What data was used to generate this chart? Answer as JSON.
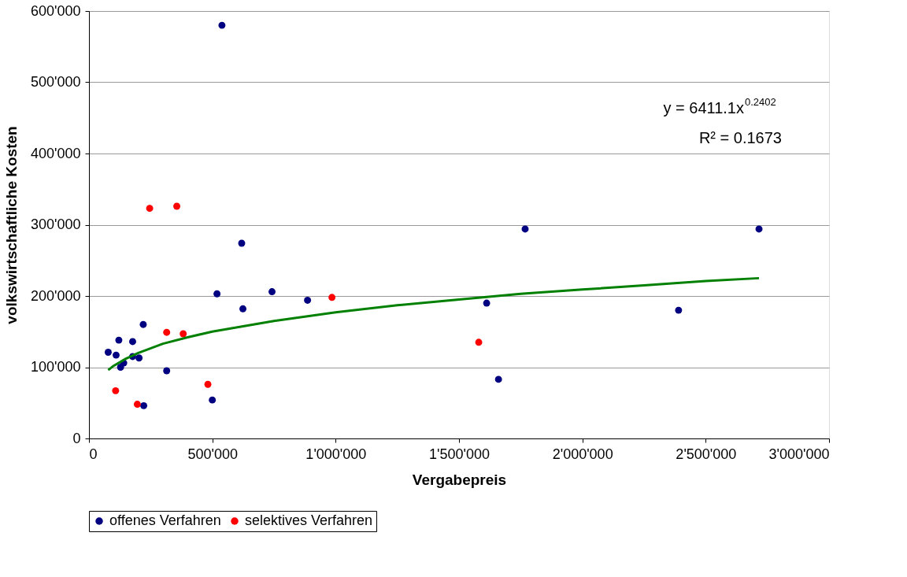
{
  "chart_data": {
    "type": "scatter",
    "xlabel": "Vergabepreis",
    "ylabel": "volkswirtschaftliche Kosten",
    "xlim": [
      0,
      3000000
    ],
    "ylim": [
      0,
      600000
    ],
    "xticks": [
      0,
      {
        "value": 500000,
        "label": "500'000"
      },
      {
        "value": 1000000,
        "label": "1'000'000"
      },
      {
        "value": 1500000,
        "label": "1'500'000"
      },
      {
        "value": 2000000,
        "label": "2'000'000"
      },
      {
        "value": 2500000,
        "label": "2'500'000"
      },
      {
        "value": 3000000,
        "label": "3'000'000"
      }
    ],
    "yticks": [
      0,
      {
        "value": 100000,
        "label": "100'000"
      },
      {
        "value": 200000,
        "label": "200'000"
      },
      {
        "value": 300000,
        "label": "300'000"
      },
      {
        "value": 400000,
        "label": "400'000"
      },
      {
        "value": 500000,
        "label": "500'000"
      },
      {
        "value": 600000,
        "label": "600'000"
      }
    ],
    "grid": "y",
    "legend": "bottom",
    "marker": "circle",
    "annotations": [
      "y = 6411.1x$^{0.2402}$",
      "R² = 0.1673"
    ],
    "series": [
      {
        "name": "offenes Verfahren",
        "color": "#000080",
        "x": [
          78000,
          110000,
          121000,
          128000,
          141000,
          177000,
          177000,
          203000,
          220000,
          222000,
          315000,
          519000,
          500000,
          539000,
          619000,
          624000,
          742000,
          886000,
          1612000,
          1660000,
          1768000,
          2390000,
          2716000
        ],
        "values": [
          121000,
          117000,
          138000,
          100000,
          106000,
          136000,
          115000,
          113000,
          160000,
          46000,
          95000,
          203000,
          54000,
          580000,
          274000,
          182000,
          206000,
          194000,
          190000,
          83000,
          294000,
          180000,
          294000
        ]
      },
      {
        "name": "selektives Verfahren",
        "color": "#ff0000",
        "x": [
          246000,
          356000,
          315000,
          382000,
          108000,
          196000,
          482000,
          985000,
          1580000
        ],
        "values": [
          323000,
          326000,
          149000,
          147000,
          67000,
          48000,
          76000,
          198000,
          135000
        ]
      },
      {
        "color": "#008000",
        "type": "line",
        "marker": "none",
        "line_style": "solid",
        "x": [
          78000,
          100000,
          150000,
          200000,
          300000,
          400000,
          500000,
          750000,
          1000000,
          1250000,
          1500000,
          1750000,
          2000000,
          2250000,
          2500000,
          2716000
        ],
        "values": [
          96000,
          102000,
          112000,
          120000,
          133000,
          142000,
          150000,
          165000,
          177000,
          187000,
          195000,
          203000,
          209000,
          215000,
          221000,
          225000
        ]
      }
    ]
  }
}
